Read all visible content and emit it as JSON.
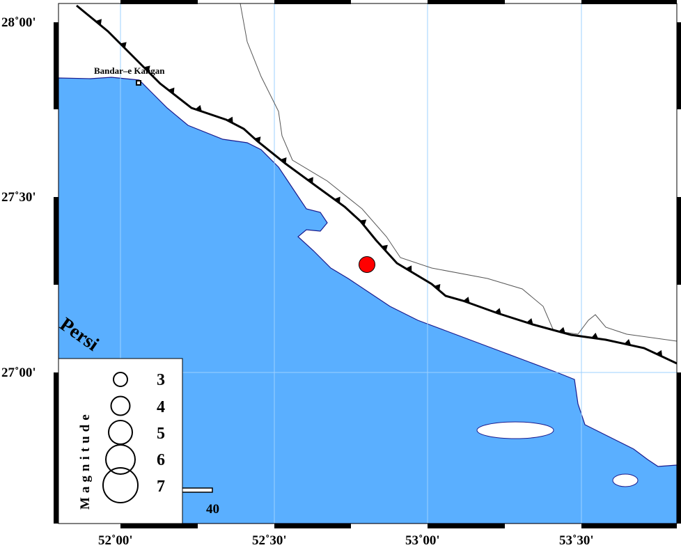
{
  "map": {
    "colors": {
      "sea": "#5aafff",
      "land": "#ffffff",
      "coast": "#1a1a8c",
      "fault": "#000000",
      "epicenter": "#ff0000"
    },
    "lon_ticks": [
      "52˚00'",
      "52˚30'",
      "53˚00'",
      "53˚30'"
    ],
    "lat_ticks": [
      "28˚00'",
      "27˚30'",
      "27˚00'"
    ],
    "place": {
      "name": "Bandar–e Kangan",
      "icon": "square-town-icon"
    },
    "sea_label": "Persi",
    "epicenter": {
      "icon": "red-circle-icon"
    },
    "scale_bar": {
      "label": "40"
    }
  },
  "legend": {
    "title": "Magnitude",
    "items": [
      "3",
      "4",
      "5",
      "6",
      "7"
    ]
  }
}
